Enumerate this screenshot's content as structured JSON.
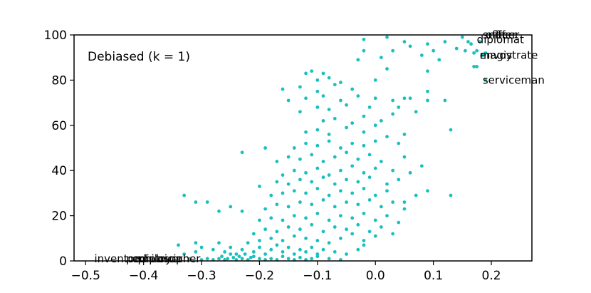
{
  "chart_data": {
    "type": "scatter",
    "inset_title": "Debiased (k = 1)",
    "xlim": [
      -0.52,
      0.27
    ],
    "ylim": [
      0,
      100
    ],
    "x_ticks": [
      -0.5,
      -0.4,
      -0.3,
      -0.2,
      -0.1,
      0.0,
      0.1,
      0.2
    ],
    "x_tick_labels": [
      "−0.5",
      "−0.4",
      "−0.3",
      "−0.2",
      "−0.1",
      "0.0",
      "0.1",
      "0.2"
    ],
    "y_ticks": [
      0,
      20,
      40,
      60,
      80,
      100
    ],
    "y_tick_labels": [
      "0",
      "20",
      "40",
      "60",
      "80",
      "100"
    ],
    "grid": false,
    "marker_color": "#1bbfbf",
    "annotations": [
      {
        "text": "inventor",
        "x": -0.485,
        "y": 1
      },
      {
        "text": "pediatrician",
        "x": -0.43,
        "y": 1
      },
      {
        "text": "employer",
        "x": -0.42,
        "y": 1
      },
      {
        "text": "philosopher",
        "x": -0.41,
        "y": 1
      },
      {
        "text": "officer",
        "x": 0.19,
        "y": 100
      },
      {
        "text": "sniffer",
        "x": 0.185,
        "y": 100
      },
      {
        "text": "diplomat",
        "x": 0.175,
        "y": 98
      },
      {
        "text": "magistrate",
        "x": 0.18,
        "y": 91
      },
      {
        "text": "envoy",
        "x": 0.18,
        "y": 91
      },
      {
        "text": "serviceman",
        "x": 0.185,
        "y": 80
      }
    ],
    "points": [
      [
        -0.32,
        1
      ],
      [
        -0.3,
        0.5
      ],
      [
        -0.29,
        1
      ],
      [
        -0.28,
        0.5
      ],
      [
        -0.27,
        1
      ],
      [
        -0.265,
        2
      ],
      [
        -0.26,
        0.5
      ],
      [
        -0.255,
        1
      ],
      [
        -0.25,
        3
      ],
      [
        -0.245,
        1.5
      ],
      [
        -0.24,
        0.5
      ],
      [
        -0.235,
        2
      ],
      [
        -0.23,
        1
      ],
      [
        -0.225,
        3
      ],
      [
        -0.22,
        0.5
      ],
      [
        -0.215,
        1.5
      ],
      [
        -0.21,
        2
      ],
      [
        -0.2,
        1
      ],
      [
        -0.19,
        0.5
      ],
      [
        -0.18,
        1
      ],
      [
        -0.17,
        0.5
      ],
      [
        -0.16,
        2
      ],
      [
        -0.15,
        1
      ],
      [
        -0.14,
        0.5
      ],
      [
        -0.13,
        1.5
      ],
      [
        -0.12,
        0.5
      ],
      [
        -0.11,
        1
      ],
      [
        -0.1,
        2
      ],
      [
        -0.08,
        1
      ],
      [
        -0.06,
        0.5
      ],
      [
        -0.31,
        4
      ],
      [
        -0.3,
        6
      ],
      [
        -0.33,
        3
      ],
      [
        -0.28,
        5
      ],
      [
        -0.26,
        4
      ],
      [
        -0.25,
        6
      ],
      [
        -0.24,
        3
      ],
      [
        -0.23,
        5
      ],
      [
        -0.21,
        4
      ],
      [
        -0.2,
        6
      ],
      [
        -0.19,
        3
      ],
      [
        -0.18,
        5
      ],
      [
        -0.17,
        7
      ],
      [
        -0.16,
        4
      ],
      [
        -0.15,
        6
      ],
      [
        -0.14,
        3
      ],
      [
        -0.13,
        5
      ],
      [
        -0.12,
        4
      ],
      [
        -0.11,
        6
      ],
      [
        -0.1,
        3
      ],
      [
        -0.09,
        5
      ],
      [
        -0.07,
        4
      ],
      [
        -0.05,
        3
      ],
      [
        -0.03,
        5
      ],
      [
        -0.02,
        7
      ],
      [
        -0.34,
        7
      ],
      [
        -0.31,
        8
      ],
      [
        -0.27,
        8
      ],
      [
        -0.22,
        8
      ],
      [
        -0.2,
        9
      ],
      [
        -0.18,
        10
      ],
      [
        -0.16,
        9
      ],
      [
        -0.14,
        11
      ],
      [
        -0.12,
        10
      ],
      [
        -0.1,
        9
      ],
      [
        -0.08,
        8
      ],
      [
        -0.06,
        10
      ],
      [
        -0.04,
        12
      ],
      [
        -0.02,
        9
      ],
      [
        0.0,
        11
      ],
      [
        -0.21,
        12
      ],
      [
        -0.19,
        14
      ],
      [
        -0.17,
        13
      ],
      [
        -0.15,
        15
      ],
      [
        -0.13,
        14
      ],
      [
        -0.11,
        16
      ],
      [
        -0.09,
        13
      ],
      [
        -0.07,
        15
      ],
      [
        -0.05,
        14
      ],
      [
        -0.03,
        16
      ],
      [
        -0.01,
        13
      ],
      [
        0.01,
        15
      ],
      [
        0.03,
        12
      ],
      [
        -0.2,
        18
      ],
      [
        -0.18,
        19
      ],
      [
        -0.16,
        18
      ],
      [
        -0.14,
        20
      ],
      [
        -0.12,
        19
      ],
      [
        -0.1,
        21
      ],
      [
        -0.08,
        18
      ],
      [
        -0.06,
        20
      ],
      [
        -0.04,
        19
      ],
      [
        -0.02,
        21
      ],
      [
        0.0,
        18
      ],
      [
        0.02,
        20
      ],
      [
        0.04,
        17
      ],
      [
        -0.23,
        22
      ],
      [
        -0.27,
        22
      ],
      [
        -0.31,
        26
      ],
      [
        -0.33,
        29
      ],
      [
        -0.29,
        26
      ],
      [
        -0.25,
        24
      ],
      [
        -0.19,
        23
      ],
      [
        -0.17,
        25
      ],
      [
        -0.15,
        24
      ],
      [
        -0.13,
        26
      ],
      [
        -0.11,
        25
      ],
      [
        -0.09,
        27
      ],
      [
        -0.07,
        24
      ],
      [
        -0.05,
        26
      ],
      [
        -0.03,
        25
      ],
      [
        -0.01,
        27
      ],
      [
        0.01,
        24
      ],
      [
        0.03,
        26
      ],
      [
        0.05,
        23
      ],
      [
        -0.18,
        29
      ],
      [
        -0.16,
        30
      ],
      [
        -0.14,
        31
      ],
      [
        -0.12,
        30
      ],
      [
        -0.1,
        32
      ],
      [
        -0.08,
        29
      ],
      [
        -0.06,
        31
      ],
      [
        -0.04,
        30
      ],
      [
        -0.02,
        32
      ],
      [
        0.0,
        29
      ],
      [
        0.02,
        31
      ],
      [
        0.05,
        26
      ],
      [
        0.07,
        29
      ],
      [
        0.09,
        31
      ],
      [
        0.13,
        29
      ],
      [
        -0.2,
        33
      ],
      [
        -0.17,
        35
      ],
      [
        -0.15,
        34
      ],
      [
        -0.13,
        36
      ],
      [
        -0.11,
        35
      ],
      [
        -0.09,
        37
      ],
      [
        -0.07,
        34
      ],
      [
        -0.05,
        36
      ],
      [
        -0.03,
        35
      ],
      [
        -0.01,
        37
      ],
      [
        0.02,
        34
      ],
      [
        0.04,
        36
      ],
      [
        -0.16,
        38
      ],
      [
        -0.14,
        40
      ],
      [
        -0.12,
        39
      ],
      [
        -0.1,
        41
      ],
      [
        -0.08,
        38
      ],
      [
        -0.06,
        40
      ],
      [
        -0.04,
        42
      ],
      [
        -0.02,
        39
      ],
      [
        0.0,
        41
      ],
      [
        0.03,
        40
      ],
      [
        0.06,
        39
      ],
      [
        0.08,
        42
      ],
      [
        -0.17,
        44
      ],
      [
        -0.15,
        46
      ],
      [
        -0.13,
        45
      ],
      [
        -0.11,
        47
      ],
      [
        -0.09,
        44
      ],
      [
        -0.07,
        46
      ],
      [
        -0.05,
        48
      ],
      [
        -0.03,
        45
      ],
      [
        -0.01,
        47
      ],
      [
        0.01,
        44
      ],
      [
        0.05,
        46
      ],
      [
        -0.23,
        48
      ],
      [
        -0.19,
        50
      ],
      [
        -0.14,
        50
      ],
      [
        -0.12,
        52
      ],
      [
        -0.1,
        51
      ],
      [
        -0.08,
        53
      ],
      [
        -0.06,
        50
      ],
      [
        -0.04,
        52
      ],
      [
        -0.02,
        51
      ],
      [
        0.0,
        53
      ],
      [
        0.02,
        55
      ],
      [
        0.04,
        52
      ],
      [
        -0.12,
        57
      ],
      [
        -0.1,
        58
      ],
      [
        -0.08,
        56
      ],
      [
        -0.05,
        59
      ],
      [
        -0.02,
        57
      ],
      [
        0.0,
        60
      ],
      [
        0.05,
        56
      ],
      [
        0.13,
        58
      ],
      [
        -0.09,
        62
      ],
      [
        -0.07,
        63
      ],
      [
        -0.04,
        61
      ],
      [
        -0.02,
        64
      ],
      [
        0.01,
        62
      ],
      [
        0.03,
        65
      ],
      [
        -0.13,
        66
      ],
      [
        -0.1,
        68
      ],
      [
        -0.08,
        67
      ],
      [
        -0.05,
        69
      ],
      [
        -0.01,
        68
      ],
      [
        0.04,
        68
      ],
      [
        0.07,
        66
      ],
      [
        -0.15,
        71
      ],
      [
        -0.12,
        72
      ],
      [
        -0.09,
        73
      ],
      [
        -0.06,
        71
      ],
      [
        -0.03,
        73
      ],
      [
        0.0,
        72
      ],
      [
        0.03,
        71
      ],
      [
        0.06,
        72
      ],
      [
        0.09,
        71
      ],
      [
        0.12,
        71
      ],
      [
        -0.16,
        76
      ],
      [
        -0.13,
        77
      ],
      [
        -0.1,
        75
      ],
      [
        -0.07,
        78
      ],
      [
        -0.04,
        76
      ],
      [
        0.05,
        72
      ],
      [
        0.09,
        75
      ],
      [
        -0.1,
        80
      ],
      [
        -0.08,
        81
      ],
      [
        -0.06,
        79
      ],
      [
        0.0,
        80
      ],
      [
        -0.12,
        83
      ],
      [
        -0.11,
        84
      ],
      [
        -0.09,
        83
      ],
      [
        0.02,
        85
      ],
      [
        0.09,
        84
      ],
      [
        -0.03,
        89
      ],
      [
        0.01,
        90
      ],
      [
        0.08,
        91
      ],
      [
        0.11,
        89
      ],
      [
        -0.02,
        93
      ],
      [
        0.03,
        93
      ],
      [
        0.06,
        95
      ],
      [
        0.09,
        96
      ],
      [
        0.1,
        93
      ],
      [
        -0.02,
        98
      ],
      [
        0.02,
        99
      ],
      [
        0.05,
        97
      ],
      [
        0.12,
        97
      ],
      [
        0.15,
        99
      ],
      [
        0.16,
        97
      ],
      [
        0.14,
        94
      ],
      [
        0.155,
        93
      ],
      [
        0.165,
        96
      ],
      [
        0.17,
        92
      ],
      [
        0.175,
        93
      ],
      [
        0.18,
        97
      ],
      [
        0.17,
        86
      ],
      [
        0.175,
        86
      ],
      [
        0.185,
        91
      ],
      [
        0.19,
        92
      ],
      [
        0.19,
        80
      ]
    ]
  }
}
